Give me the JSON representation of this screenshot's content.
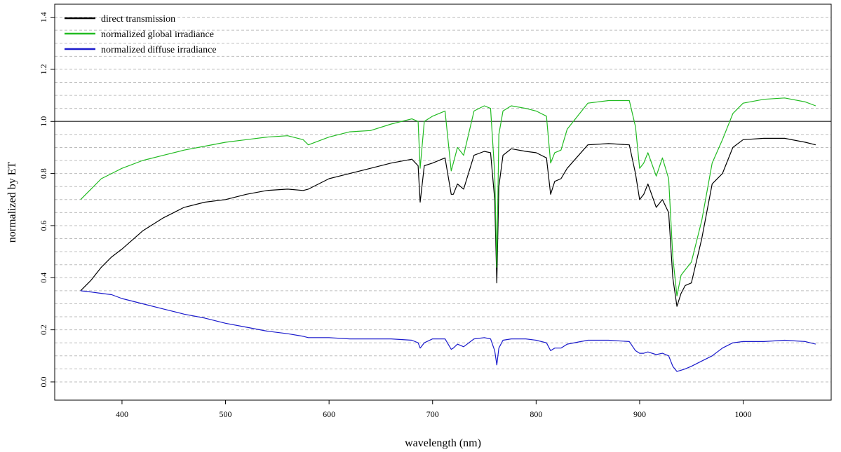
{
  "chart_data": {
    "type": "line",
    "xlabel": "wavelength (nm)",
    "ylabel": "normalized by ET",
    "xlim": [
      335,
      1085
    ],
    "ylim": [
      -0.07,
      1.45
    ],
    "x_ticks": [
      400,
      500,
      600,
      700,
      800,
      900,
      1000
    ],
    "y_ticks": [
      0.0,
      0.2,
      0.4,
      0.6,
      0.8,
      1.0,
      1.2,
      1.4
    ],
    "x_tick_labels": [
      "400",
      "500",
      "600",
      "700",
      "800",
      "900",
      "1000"
    ],
    "y_tick_labels": [
      "0.0",
      "0.2",
      "0.4",
      "0.6",
      "0.8",
      "1.0",
      "1.2",
      "1.4"
    ],
    "grid": "horizontal dashed",
    "reference_line": 1.0,
    "legend_position": "top-left",
    "series": [
      {
        "name": "direct transmission",
        "color": "#000000",
        "x": [
          360,
          370,
          380,
          390,
          400,
          420,
          440,
          460,
          480,
          500,
          520,
          540,
          560,
          575,
          580,
          600,
          620,
          640,
          660,
          680,
          686,
          688,
          692,
          700,
          712,
          718,
          720,
          724,
          730,
          740,
          750,
          756,
          760,
          762,
          764,
          768,
          776,
          790,
          800,
          810,
          814,
          818,
          824,
          830,
          850,
          870,
          890,
          896,
          900,
          904,
          908,
          916,
          922,
          928,
          932,
          936,
          940,
          944,
          950,
          960,
          970,
          980,
          990,
          1000,
          1020,
          1040,
          1060,
          1070
        ],
        "y": [
          0.35,
          0.39,
          0.44,
          0.48,
          0.51,
          0.58,
          0.63,
          0.67,
          0.69,
          0.7,
          0.72,
          0.735,
          0.74,
          0.735,
          0.74,
          0.78,
          0.8,
          0.82,
          0.84,
          0.855,
          0.83,
          0.69,
          0.83,
          0.84,
          0.86,
          0.72,
          0.72,
          0.76,
          0.74,
          0.87,
          0.885,
          0.88,
          0.7,
          0.38,
          0.75,
          0.87,
          0.895,
          0.885,
          0.88,
          0.86,
          0.72,
          0.77,
          0.78,
          0.82,
          0.91,
          0.915,
          0.91,
          0.8,
          0.7,
          0.72,
          0.76,
          0.67,
          0.7,
          0.65,
          0.4,
          0.29,
          0.34,
          0.37,
          0.38,
          0.55,
          0.76,
          0.8,
          0.9,
          0.93,
          0.935,
          0.935,
          0.92,
          0.91
        ]
      },
      {
        "name": "normalized global irradiance",
        "color": "#22bb22",
        "x": [
          360,
          370,
          380,
          390,
          400,
          420,
          440,
          460,
          480,
          500,
          520,
          540,
          560,
          575,
          580,
          600,
          620,
          640,
          660,
          680,
          686,
          688,
          692,
          700,
          712,
          718,
          720,
          724,
          730,
          740,
          750,
          756,
          760,
          762,
          764,
          768,
          776,
          790,
          800,
          810,
          814,
          818,
          824,
          830,
          850,
          870,
          890,
          896,
          900,
          904,
          908,
          916,
          922,
          928,
          932,
          936,
          940,
          944,
          950,
          960,
          970,
          980,
          990,
          1000,
          1020,
          1040,
          1060,
          1070
        ],
        "y": [
          0.7,
          0.74,
          0.78,
          0.8,
          0.82,
          0.85,
          0.87,
          0.89,
          0.905,
          0.92,
          0.93,
          0.94,
          0.945,
          0.93,
          0.91,
          0.94,
          0.96,
          0.965,
          0.99,
          1.01,
          1.0,
          0.82,
          1.0,
          1.02,
          1.04,
          0.81,
          0.84,
          0.9,
          0.87,
          1.04,
          1.06,
          1.05,
          0.8,
          0.44,
          0.95,
          1.04,
          1.06,
          1.05,
          1.04,
          1.02,
          0.84,
          0.88,
          0.89,
          0.97,
          1.07,
          1.08,
          1.08,
          0.98,
          0.82,
          0.84,
          0.88,
          0.79,
          0.86,
          0.78,
          0.48,
          0.33,
          0.41,
          0.43,
          0.46,
          0.62,
          0.84,
          0.93,
          1.03,
          1.07,
          1.085,
          1.09,
          1.075,
          1.06
        ]
      },
      {
        "name": "normalized diffuse irradiance",
        "color": "#1a1acc",
        "x": [
          360,
          370,
          380,
          390,
          400,
          420,
          440,
          460,
          480,
          500,
          520,
          540,
          560,
          575,
          580,
          600,
          620,
          640,
          660,
          680,
          686,
          688,
          692,
          700,
          712,
          718,
          720,
          724,
          730,
          740,
          750,
          756,
          760,
          762,
          764,
          768,
          776,
          790,
          800,
          810,
          814,
          818,
          824,
          830,
          850,
          870,
          890,
          896,
          900,
          904,
          908,
          916,
          922,
          928,
          932,
          936,
          940,
          944,
          950,
          960,
          970,
          980,
          990,
          1000,
          1020,
          1040,
          1060,
          1070
        ],
        "y": [
          0.35,
          0.345,
          0.34,
          0.335,
          0.32,
          0.3,
          0.28,
          0.26,
          0.245,
          0.225,
          0.21,
          0.195,
          0.185,
          0.175,
          0.17,
          0.17,
          0.165,
          0.165,
          0.165,
          0.16,
          0.15,
          0.13,
          0.15,
          0.165,
          0.165,
          0.125,
          0.13,
          0.145,
          0.135,
          0.165,
          0.17,
          0.165,
          0.12,
          0.065,
          0.13,
          0.16,
          0.165,
          0.165,
          0.16,
          0.15,
          0.12,
          0.13,
          0.13,
          0.145,
          0.16,
          0.16,
          0.155,
          0.12,
          0.11,
          0.11,
          0.115,
          0.105,
          0.11,
          0.1,
          0.06,
          0.04,
          0.045,
          0.05,
          0.06,
          0.08,
          0.1,
          0.13,
          0.15,
          0.155,
          0.155,
          0.16,
          0.155,
          0.145
        ]
      }
    ]
  }
}
